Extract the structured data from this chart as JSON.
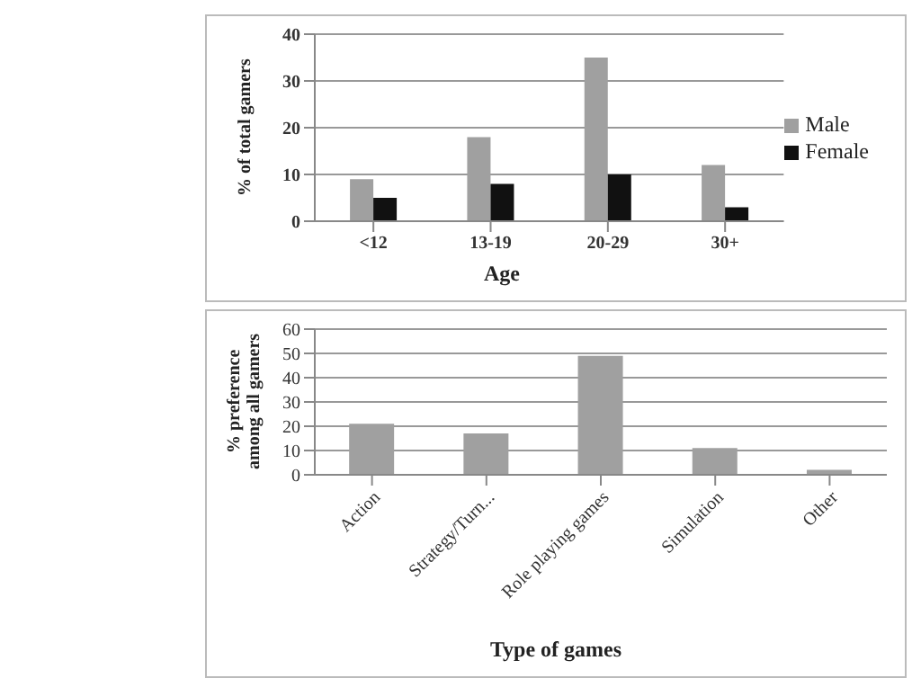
{
  "chart_data": [
    {
      "type": "bar",
      "xlabel": "Age",
      "ylabel": "% of total gamers",
      "categories": [
        "<12",
        "13-19",
        "20-29",
        "30+"
      ],
      "series": [
        {
          "name": "Male",
          "color": "#a0a0a0",
          "values": [
            9,
            18,
            35,
            12
          ]
        },
        {
          "name": "Female",
          "color": "#111111",
          "values": [
            5,
            8,
            10,
            3
          ]
        }
      ],
      "ylim": [
        0,
        40
      ],
      "yticks": [
        0,
        10,
        20,
        30,
        40
      ],
      "grid": "y",
      "legend": "right"
    },
    {
      "type": "bar",
      "xlabel": "Type of games",
      "ylabel": "% preference among all gamers",
      "categories": [
        "Action",
        "Strategy/Turn...",
        "Role playing games",
        "Simulation",
        "Other"
      ],
      "series": [
        {
          "color": "#a0a0a0",
          "values": [
            21,
            17,
            49,
            11,
            2
          ]
        }
      ],
      "ylim": [
        0,
        60
      ],
      "yticks": [
        0,
        10,
        20,
        30,
        40,
        50,
        60
      ],
      "grid": "y",
      "legend": false
    }
  ]
}
